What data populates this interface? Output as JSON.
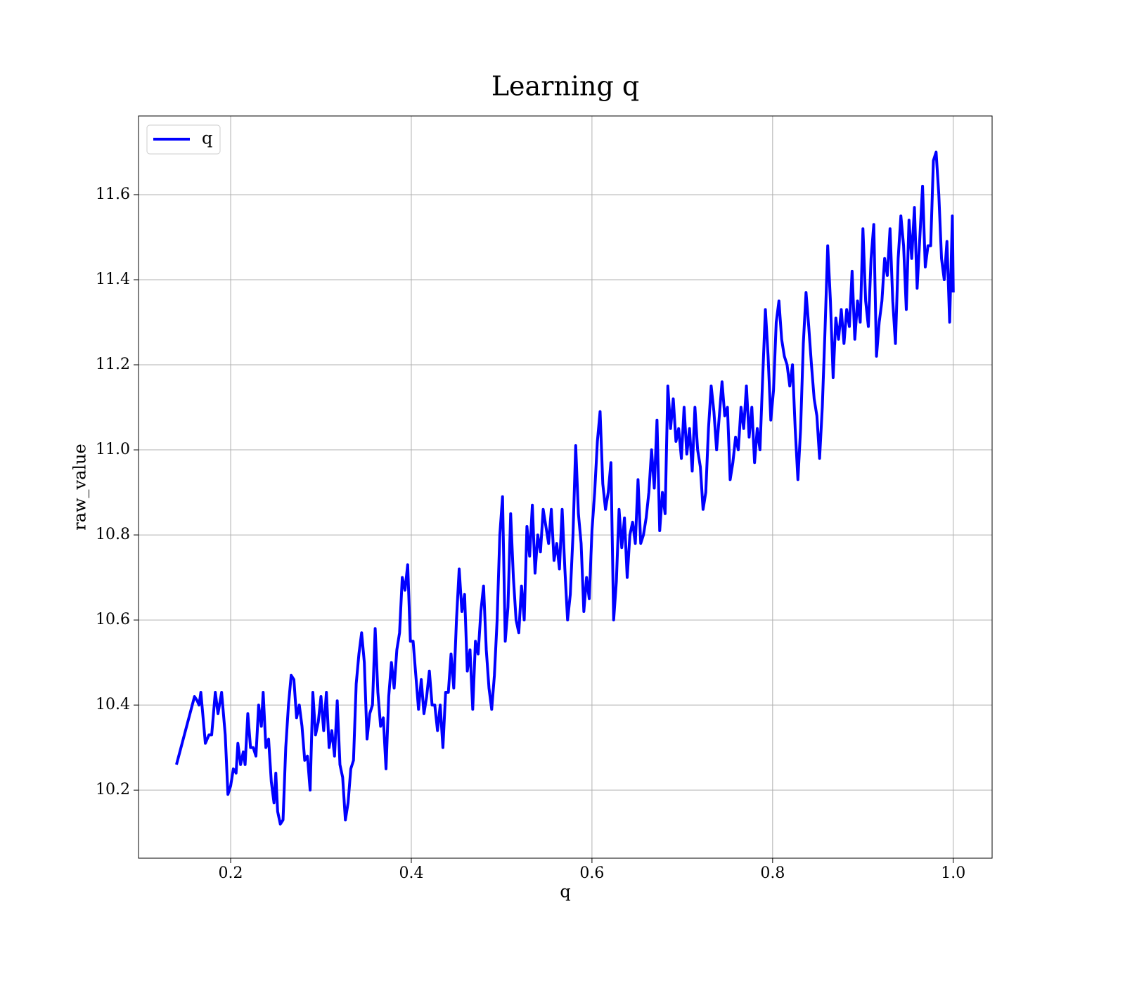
{
  "chart_data": {
    "type": "line",
    "title": "Learning q",
    "xlabel": "q",
    "ylabel": "raw_value",
    "grid": true,
    "legend": "upper left",
    "xlim": [
      0.098,
      1.043
    ],
    "ylim": [
      10.04,
      11.785
    ],
    "xticks": [
      0.2,
      0.4,
      0.6,
      0.8,
      {
        "value": 1,
        "label": "1.0"
      }
    ],
    "yticks": [
      10.2,
      10.4,
      10.6,
      10.8,
      {
        "value": 11,
        "label": "11.0"
      },
      11.2,
      11.4,
      11.6
    ],
    "x": [
      0.14,
      0.16,
      0.163,
      0.165,
      0.167,
      0.172,
      0.176,
      0.179,
      0.183,
      0.186,
      0.19,
      0.194,
      0.197,
      0.2,
      0.203,
      0.206,
      0.208,
      0.211,
      0.214,
      0.216,
      0.219,
      0.222,
      0.225,
      0.228,
      0.231,
      0.234,
      0.236,
      0.239,
      0.242,
      0.245,
      0.248,
      0.25,
      0.252,
      0.255,
      0.258,
      0.261,
      0.264,
      0.267,
      0.27,
      0.273,
      0.276,
      0.279,
      0.282,
      0.285,
      0.288,
      0.291,
      0.294,
      0.297,
      0.3,
      0.303,
      0.306,
      0.309,
      0.312,
      0.315,
      0.318,
      0.321,
      0.324,
      0.327,
      0.33,
      0.333,
      0.336,
      0.339,
      0.342,
      0.345,
      0.348,
      0.351,
      0.354,
      0.357,
      0.36,
      0.363,
      0.366,
      0.369,
      0.372,
      0.375,
      0.378,
      0.381,
      0.384,
      0.387,
      0.39,
      0.393,
      0.396,
      0.399,
      0.402,
      0.405,
      0.408,
      0.411,
      0.414,
      0.417,
      0.42,
      0.423,
      0.426,
      0.429,
      0.432,
      0.435,
      0.438,
      0.441,
      0.444,
      0.447,
      0.45,
      0.453,
      0.456,
      0.459,
      0.462,
      0.465,
      0.468,
      0.471,
      0.474,
      0.477,
      0.48,
      0.483,
      0.486,
      0.489,
      0.492,
      0.495,
      0.498,
      0.501,
      0.504,
      0.507,
      0.51,
      0.513,
      0.516,
      0.519,
      0.522,
      0.525,
      0.528,
      0.531,
      0.534,
      0.537,
      0.54,
      0.543,
      0.546,
      0.549,
      0.552,
      0.555,
      0.558,
      0.561,
      0.564,
      0.567,
      0.57,
      0.573,
      0.576,
      0.579,
      0.582,
      0.585,
      0.588,
      0.591,
      0.594,
      0.597,
      0.6,
      0.603,
      0.606,
      0.609,
      0.612,
      0.615,
      0.618,
      0.621,
      0.624,
      0.627,
      0.63,
      0.633,
      0.636,
      0.639,
      0.642,
      0.645,
      0.648,
      0.651,
      0.654,
      0.657,
      0.66,
      0.663,
      0.666,
      0.669,
      0.672,
      0.675,
      0.678,
      0.681,
      0.684,
      0.687,
      0.69,
      0.693,
      0.696,
      0.699,
      0.702,
      0.705,
      0.708,
      0.711,
      0.714,
      0.717,
      0.72,
      0.723,
      0.726,
      0.729,
      0.732,
      0.735,
      0.738,
      0.741,
      0.744,
      0.747,
      0.75,
      0.753,
      0.756,
      0.759,
      0.762,
      0.765,
      0.768,
      0.771,
      0.774,
      0.777,
      0.78,
      0.783,
      0.786,
      0.789,
      0.792,
      0.795,
      0.798,
      0.801,
      0.804,
      0.807,
      0.81,
      0.813,
      0.816,
      0.819,
      0.822,
      0.825,
      0.828,
      0.831,
      0.834,
      0.837,
      0.84,
      0.843,
      0.846,
      0.849,
      0.852,
      0.855,
      0.858,
      0.861,
      0.864,
      0.867,
      0.87,
      0.873,
      0.876,
      0.879,
      0.882,
      0.885,
      0.888,
      0.891,
      0.894,
      0.897,
      0.9,
      0.903,
      0.906,
      0.909,
      0.912,
      0.915,
      0.918,
      0.921,
      0.924,
      0.927,
      0.93,
      0.933,
      0.936,
      0.939,
      0.942,
      0.945,
      0.948,
      0.951,
      0.954,
      0.957,
      0.96,
      0.963,
      0.966,
      0.969,
      0.972,
      0.975,
      0.978,
      0.981,
      0.984,
      0.987,
      0.99,
      0.993,
      0.996,
      0.999,
      1.0
    ],
    "series": [
      {
        "name": "q",
        "color": "#0000ff",
        "values": [
          10.26,
          10.42,
          10.41,
          10.4,
          10.43,
          10.31,
          10.33,
          10.33,
          10.43,
          10.38,
          10.43,
          10.33,
          10.19,
          10.21,
          10.25,
          10.24,
          10.31,
          10.26,
          10.29,
          10.26,
          10.38,
          10.3,
          10.3,
          10.28,
          10.4,
          10.35,
          10.43,
          10.3,
          10.32,
          10.22,
          10.17,
          10.24,
          10.15,
          10.12,
          10.13,
          10.3,
          10.4,
          10.47,
          10.46,
          10.37,
          10.4,
          10.35,
          10.27,
          10.28,
          10.2,
          10.43,
          10.33,
          10.36,
          10.42,
          10.34,
          10.43,
          10.3,
          10.34,
          10.28,
          10.41,
          10.26,
          10.23,
          10.13,
          10.17,
          10.25,
          10.27,
          10.45,
          10.52,
          10.57,
          10.5,
          10.32,
          10.38,
          10.4,
          10.58,
          10.43,
          10.35,
          10.37,
          10.25,
          10.42,
          10.5,
          10.44,
          10.53,
          10.57,
          10.7,
          10.67,
          10.73,
          10.55,
          10.55,
          10.47,
          10.39,
          10.46,
          10.38,
          10.42,
          10.48,
          10.4,
          10.4,
          10.34,
          10.4,
          10.3,
          10.43,
          10.43,
          10.52,
          10.44,
          10.6,
          10.72,
          10.62,
          10.66,
          10.48,
          10.53,
          10.39,
          10.55,
          10.52,
          10.62,
          10.68,
          10.53,
          10.44,
          10.39,
          10.47,
          10.6,
          10.8,
          10.89,
          10.55,
          10.63,
          10.85,
          10.7,
          10.6,
          10.57,
          10.68,
          10.6,
          10.82,
          10.75,
          10.87,
          10.71,
          10.8,
          10.76,
          10.86,
          10.82,
          10.78,
          10.86,
          10.74,
          10.78,
          10.72,
          10.86,
          10.72,
          10.6,
          10.66,
          10.8,
          11.01,
          10.85,
          10.78,
          10.62,
          10.7,
          10.65,
          10.81,
          10.9,
          11.02,
          11.09,
          10.92,
          10.86,
          10.9,
          10.97,
          10.6,
          10.69,
          10.86,
          10.77,
          10.84,
          10.7,
          10.8,
          10.83,
          10.78,
          10.93,
          10.78,
          10.8,
          10.84,
          10.9,
          11.0,
          10.91,
          11.07,
          10.81,
          10.9,
          10.85,
          11.15,
          11.05,
          11.12,
          11.02,
          11.05,
          10.98,
          11.1,
          10.99,
          11.05,
          10.95,
          11.1,
          11.0,
          10.96,
          10.86,
          10.9,
          11.05,
          11.15,
          11.09,
          11.0,
          11.08,
          11.16,
          11.08,
          11.1,
          10.93,
          10.97,
          11.03,
          11.0,
          11.1,
          11.05,
          11.15,
          11.03,
          11.1,
          10.97,
          11.05,
          11.0,
          11.17,
          11.33,
          11.22,
          11.07,
          11.14,
          11.3,
          11.35,
          11.26,
          11.22,
          11.2,
          11.15,
          11.2,
          11.05,
          10.93,
          11.05,
          11.25,
          11.37,
          11.29,
          11.2,
          11.12,
          11.08,
          10.98,
          11.1,
          11.28,
          11.48,
          11.35,
          11.17,
          11.31,
          11.26,
          11.33,
          11.25,
          11.33,
          11.29,
          11.42,
          11.26,
          11.35,
          11.3,
          11.52,
          11.35,
          11.29,
          11.45,
          11.53,
          11.22,
          11.3,
          11.35,
          11.45,
          11.41,
          11.52,
          11.35,
          11.25,
          11.45,
          11.55,
          11.48,
          11.33,
          11.54,
          11.45,
          11.57,
          11.38,
          11.5,
          11.62,
          11.43,
          11.48,
          11.48,
          11.68,
          11.7,
          11.6,
          11.45,
          11.4,
          11.49,
          11.3,
          11.55,
          11.37
        ]
      }
    ]
  }
}
